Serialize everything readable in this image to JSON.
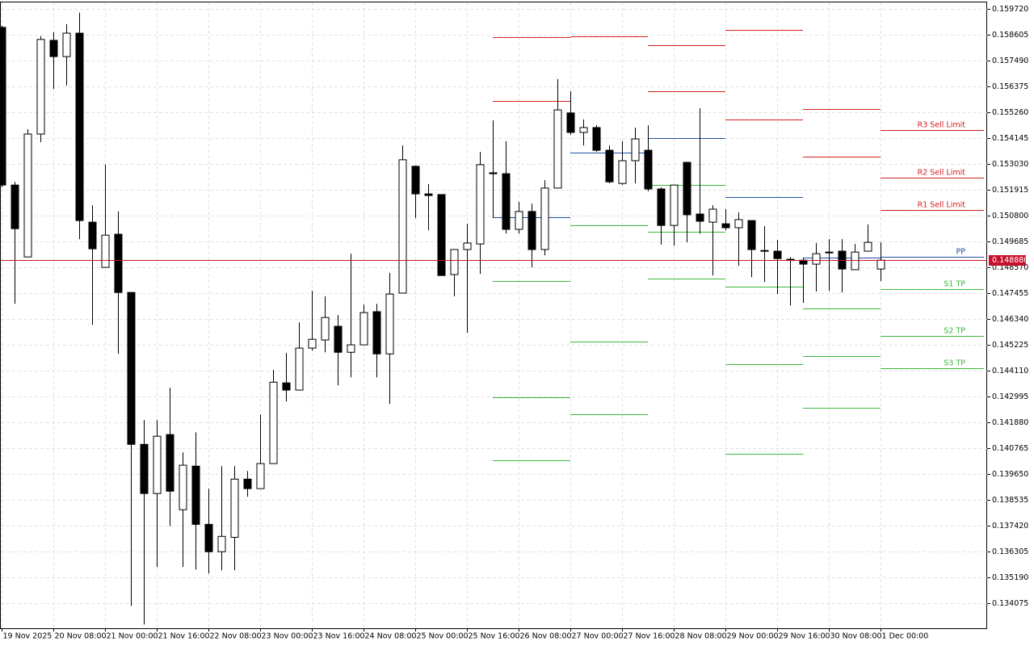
{
  "chart_data": {
    "type": "candlestick",
    "categories": [
      "19 Nov 2025",
      null,
      null,
      null,
      "20 Nov 08:00",
      null,
      null,
      null,
      "21 Nov 00:00",
      null,
      null,
      null,
      "21 Nov 16:00",
      null,
      null,
      null,
      "22 Nov 08:00",
      null,
      null,
      null,
      "23 Nov 00:00",
      null,
      null,
      null,
      "23 Nov 16:00",
      null,
      null,
      null,
      "24 Nov 08:00",
      null,
      null,
      null,
      "25 Nov 00:00",
      null,
      null,
      null,
      "25 Nov 16:00",
      null,
      null,
      null,
      "26 Nov 08:00",
      null,
      null,
      null,
      "27 Nov 00:00",
      null,
      null,
      null,
      "27 Nov 16:00",
      null,
      null,
      null,
      "28 Nov 08:00",
      null,
      null,
      null,
      "29 Nov 00:00",
      null,
      null,
      null,
      "29 Nov 16:00",
      null,
      null,
      null,
      "30 Nov 08:00",
      null,
      null,
      null,
      "1 Dec 00:00"
    ],
    "open": [
      0.15892,
      0.15212,
      0.14902,
      0.15432,
      0.15836,
      0.15766,
      0.15867,
      0.15052,
      0.14857,
      0.15,
      0.14749,
      0.14094,
      0.13882,
      0.14136,
      0.13812,
      0.14,
      0.13749,
      0.13631,
      0.13693,
      0.13944,
      0.13903,
      0.14011,
      0.14359,
      0.14328,
      0.14509,
      0.14544,
      0.14603,
      0.14491,
      0.14523,
      0.14666,
      0.14484,
      0.14746,
      0.15293,
      0.15174,
      0.15171,
      0.14826,
      0.14934,
      0.14958,
      0.15265,
      0.15261,
      0.15021,
      0.15098,
      0.14934,
      0.15199,
      0.15523,
      0.15439,
      0.1546,
      0.15362,
      0.15219,
      0.15317,
      0.15362,
      0.15195,
      0.15038,
      0.1531,
      0.15087,
      0.15052,
      0.15045,
      0.15028,
      0.15059,
      0.1493,
      0.14927,
      0.14892,
      0.14888,
      0.14871,
      0.14923,
      0.14927,
      0.14847,
      0.14927,
      0.1485
    ],
    "high": [
      0.15899,
      0.15226,
      0.15453,
      0.15854,
      0.15871,
      0.15906,
      0.15955,
      0.15125,
      0.153,
      0.15098,
      0.14749,
      0.14199,
      0.14199,
      0.14338,
      0.14059,
      0.14146,
      0.13903,
      0.14,
      0.14,
      0.13979,
      0.14223,
      0.14415,
      0.14488,
      0.1462,
      0.14756,
      0.14732,
      0.14652,
      0.14916,
      0.14697,
      0.147,
      0.14833,
      0.15383,
      0.15296,
      0.15216,
      0.15171,
      0.14934,
      0.15045,
      0.15355,
      0.15491,
      0.15401,
      0.15139,
      0.15132,
      0.15233,
      0.15669,
      0.15617,
      0.15495,
      0.1547,
      0.15383,
      0.15401,
      0.1546,
      0.1547,
      0.15202,
      0.15212,
      0.1531,
      0.15543,
      0.15125,
      0.15108,
      0.15094,
      0.15059,
      0.15035,
      0.14976,
      0.14902,
      0.14899,
      0.14962,
      0.14979,
      0.14979,
      0.14958,
      0.15042,
      0.14965
    ],
    "low": [
      0.15202,
      0.147,
      0.14902,
      0.15397,
      0.15627,
      0.15641,
      0.14979,
      0.1461,
      0.14857,
      0.14484,
      0.13397,
      0.13317,
      0.13565,
      0.13742,
      0.13565,
      0.13554,
      0.13537,
      0.13551,
      0.13551,
      0.13868,
      0.13903,
      0.14011,
      0.14279,
      0.14328,
      0.14498,
      0.14491,
      0.14348,
      0.14383,
      0.14523,
      0.14383,
      0.14268,
      0.14746,
      0.1507,
      0.15017,
      0.14822,
      0.14732,
      0.14575,
      0.14829,
      0.1507,
      0.15003,
      0.15003,
      0.14857,
      0.14909,
      0.15199,
      0.15429,
      0.15383,
      0.15355,
      0.15219,
      0.15212,
      0.15219,
      0.15185,
      0.14955,
      0.14951,
      0.14965,
      0.15003,
      0.14822,
      0.15017,
      0.14864,
      0.14815,
      0.14794,
      0.14742,
      0.14693,
      0.14704,
      0.14753,
      0.14756,
      0.14749,
      0.14847,
      0.14927,
      0.14798
    ],
    "close": [
      0.15212,
      0.15024,
      0.15432,
      0.1584,
      0.15766,
      0.15867,
      0.15059,
      0.14937,
      0.14996,
      0.14749,
      0.14094,
      0.13882,
      0.14129,
      0.13892,
      0.14004,
      0.13749,
      0.13631,
      0.13697,
      0.13944,
      0.13903,
      0.14011,
      0.14362,
      0.14328,
      0.14509,
      0.14547,
      0.14641,
      0.14491,
      0.14523,
      0.14662,
      0.14484,
      0.14742,
      0.15321,
      0.15174,
      0.15167,
      0.14822,
      0.14934,
      0.14962,
      0.153,
      0.15261,
      0.15021,
      0.15098,
      0.14934,
      0.15199,
      0.15536,
      0.15439,
      0.1546,
      0.15362,
      0.15226,
      0.15317,
      0.15411,
      0.15195,
      0.15038,
      0.15212,
      0.15084,
      0.15056,
      0.15108,
      0.15028,
      0.15063,
      0.14934,
      0.14927,
      0.14895,
      0.14888,
      0.14871,
      0.14916,
      0.1492,
      0.1485,
      0.14923,
      0.14965,
      0.14888
    ],
    "up_color": "#ffffff",
    "down_color": "#000000",
    "ylim": [
      0.13301,
      0.1601
    ],
    "yticks": [
      {
        "value": 0.15972,
        "label": "0.159720"
      },
      0.158605,
      {
        "value": 0.15749,
        "label": "0.157490"
      },
      0.156375,
      {
        "value": 0.15526,
        "label": "0.155260"
      },
      0.154145,
      {
        "value": 0.15303,
        "label": "0.153030"
      },
      0.151915,
      {
        "value": 0.1508,
        "label": "0.150800"
      },
      0.149685,
      {
        "value": 0.14857,
        "label": "0.148570"
      },
      0.147455,
      {
        "value": 0.14634,
        "label": "0.146340"
      },
      0.145225,
      {
        "value": 0.14411,
        "label": "0.144110"
      },
      0.142995,
      {
        "value": 0.14188,
        "label": "0.141880"
      },
      0.140765,
      {
        "value": 0.13965,
        "label": "0.139650"
      },
      0.138535,
      {
        "value": 0.13742,
        "label": "0.137420"
      },
      0.136305,
      {
        "value": 0.13519,
        "label": "0.135190"
      },
      0.134075
    ],
    "grid": true,
    "current_price": {
      "value": 0.14888,
      "label": "0.148880"
    },
    "current_price_color": "#c8102e",
    "series": [
      {
        "name": "R3 Sell Limit",
        "color": "#d42020",
        "values": [
          null,
          null,
          null,
          null,
          null,
          null,
          null,
          null,
          null,
          null,
          null,
          null,
          null,
          null,
          null,
          null,
          null,
          null,
          null,
          null,
          null,
          null,
          null,
          null,
          null,
          null,
          null,
          null,
          null,
          null,
          null,
          null,
          null,
          null,
          null,
          null,
          null,
          null,
          null,
          null,
          null,
          null,
          null,
          null,
          null,
          null,
          null,
          null,
          null,
          null,
          null,
          null,
          null,
          null,
          null,
          null,
          null,
          null,
          null,
          null,
          null,
          null,
          null,
          null,
          null,
          null,
          null,
          null,
          0.15449
        ]
      },
      {
        "name": "R2 Sell Limit",
        "color": "#d42020",
        "values": [
          null,
          null,
          null,
          null,
          null,
          null,
          null,
          null,
          null,
          null,
          null,
          null,
          null,
          null,
          null,
          null,
          null,
          null,
          null,
          null,
          null,
          null,
          null,
          null,
          null,
          null,
          null,
          null,
          null,
          null,
          null,
          null,
          null,
          null,
          null,
          null,
          null,
          null,
          0.1585,
          0.1585,
          0.1585,
          0.1585,
          0.1585,
          0.1585,
          null,
          null,
          null,
          null,
          null,
          null,
          0.15815,
          0.15815,
          0.15815,
          0.15815,
          0.15815,
          0.15815,
          0.15881,
          0.15881,
          0.15881,
          0.15881,
          0.15881,
          0.15881,
          0.1554,
          0.1554,
          0.1554,
          0.1554,
          0.1554,
          0.1554,
          0.15244
        ]
      },
      {
        "name": "R1 Sell Limit",
        "color": "#d42020",
        "values": [
          null,
          null,
          null,
          null,
          null,
          null,
          null,
          null,
          null,
          null,
          null,
          null,
          null,
          null,
          null,
          null,
          null,
          null,
          null,
          null,
          null,
          null,
          null,
          null,
          null,
          null,
          null,
          null,
          null,
          null,
          null,
          null,
          null,
          null,
          null,
          null,
          null,
          null,
          0.15575,
          0.15575,
          0.15575,
          0.15575,
          0.15575,
          0.15575,
          0.15854,
          0.15854,
          0.15854,
          0.15854,
          0.15854,
          0.15854,
          0.15617,
          0.15617,
          0.15617,
          0.15617,
          0.15617,
          0.15617,
          0.15495,
          0.15495,
          0.15495,
          0.15495,
          0.15495,
          0.15495,
          0.15334,
          0.15334,
          0.15334,
          0.15334,
          0.15334,
          0.15334,
          0.15105
        ]
      },
      {
        "name": "PP",
        "color": "#1f4fa0",
        "values": [
          null,
          null,
          null,
          null,
          null,
          null,
          null,
          null,
          null,
          null,
          null,
          null,
          null,
          null,
          null,
          null,
          null,
          null,
          null,
          null,
          null,
          null,
          null,
          null,
          null,
          null,
          null,
          null,
          null,
          null,
          null,
          null,
          null,
          null,
          null,
          null,
          null,
          null,
          0.15073,
          0.15073,
          0.15073,
          0.15073,
          0.15073,
          0.15073,
          0.15352,
          0.15352,
          0.15352,
          0.15352,
          0.15352,
          0.15352,
          0.15415,
          0.15415,
          0.15415,
          0.15415,
          0.15415,
          0.15415,
          0.1516,
          0.1516,
          0.1516,
          0.1516,
          0.1516,
          0.1516,
          0.14899,
          0.14899,
          0.14899,
          0.14899,
          0.14899,
          0.14899,
          0.14902
        ]
      },
      {
        "name": "S1 TP",
        "color": "#3cb83c",
        "values": [
          null,
          null,
          null,
          null,
          null,
          null,
          null,
          null,
          null,
          null,
          null,
          null,
          null,
          null,
          null,
          null,
          null,
          null,
          null,
          null,
          null,
          null,
          null,
          null,
          null,
          null,
          null,
          null,
          null,
          null,
          null,
          null,
          null,
          null,
          null,
          null,
          null,
          null,
          0.14798,
          0.14798,
          0.14798,
          0.14798,
          0.14798,
          0.14798,
          0.15038,
          0.15038,
          0.15038,
          0.15038,
          0.15038,
          0.15038,
          0.15212,
          0.15212,
          0.15212,
          0.15212,
          0.15212,
          0.15212,
          0.14774,
          0.14774,
          0.14774,
          0.14774,
          0.14774,
          0.14774,
          0.14679,
          0.14679,
          0.14679,
          0.14679,
          0.14679,
          0.14679,
          0.14763
        ]
      },
      {
        "name": "S2 TP",
        "color": "#3cb83c",
        "values": [
          null,
          null,
          null,
          null,
          null,
          null,
          null,
          null,
          null,
          null,
          null,
          null,
          null,
          null,
          null,
          null,
          null,
          null,
          null,
          null,
          null,
          null,
          null,
          null,
          null,
          null,
          null,
          null,
          null,
          null,
          null,
          null,
          null,
          null,
          null,
          null,
          null,
          null,
          0.14296,
          0.14296,
          0.14296,
          0.14296,
          0.14296,
          0.14296,
          0.14537,
          0.14537,
          0.14537,
          0.14537,
          0.14537,
          0.14537,
          0.1501,
          0.1501,
          0.1501,
          0.1501,
          0.1501,
          0.1501,
          0.14439,
          0.14439,
          0.14439,
          0.14439,
          0.14439,
          0.14439,
          0.14474,
          0.14474,
          0.14474,
          0.14474,
          0.14474,
          0.14474,
          0.14561
        ]
      },
      {
        "name": "S3 TP",
        "color": "#3cb83c",
        "values": [
          null,
          null,
          null,
          null,
          null,
          null,
          null,
          null,
          null,
          null,
          null,
          null,
          null,
          null,
          null,
          null,
          null,
          null,
          null,
          null,
          null,
          null,
          null,
          null,
          null,
          null,
          null,
          null,
          null,
          null,
          null,
          null,
          null,
          null,
          null,
          null,
          null,
          null,
          0.14024,
          0.14024,
          0.14024,
          0.14024,
          0.14024,
          0.14024,
          0.14223,
          0.14223,
          0.14223,
          0.14223,
          0.14223,
          0.14223,
          0.14808,
          0.14808,
          0.14808,
          0.14808,
          0.14808,
          0.14808,
          0.14052,
          0.14052,
          0.14052,
          0.14052,
          0.14052,
          0.14052,
          0.14251,
          0.14251,
          0.14251,
          0.14251,
          0.14251,
          0.14251,
          0.14422
        ]
      }
    ]
  }
}
